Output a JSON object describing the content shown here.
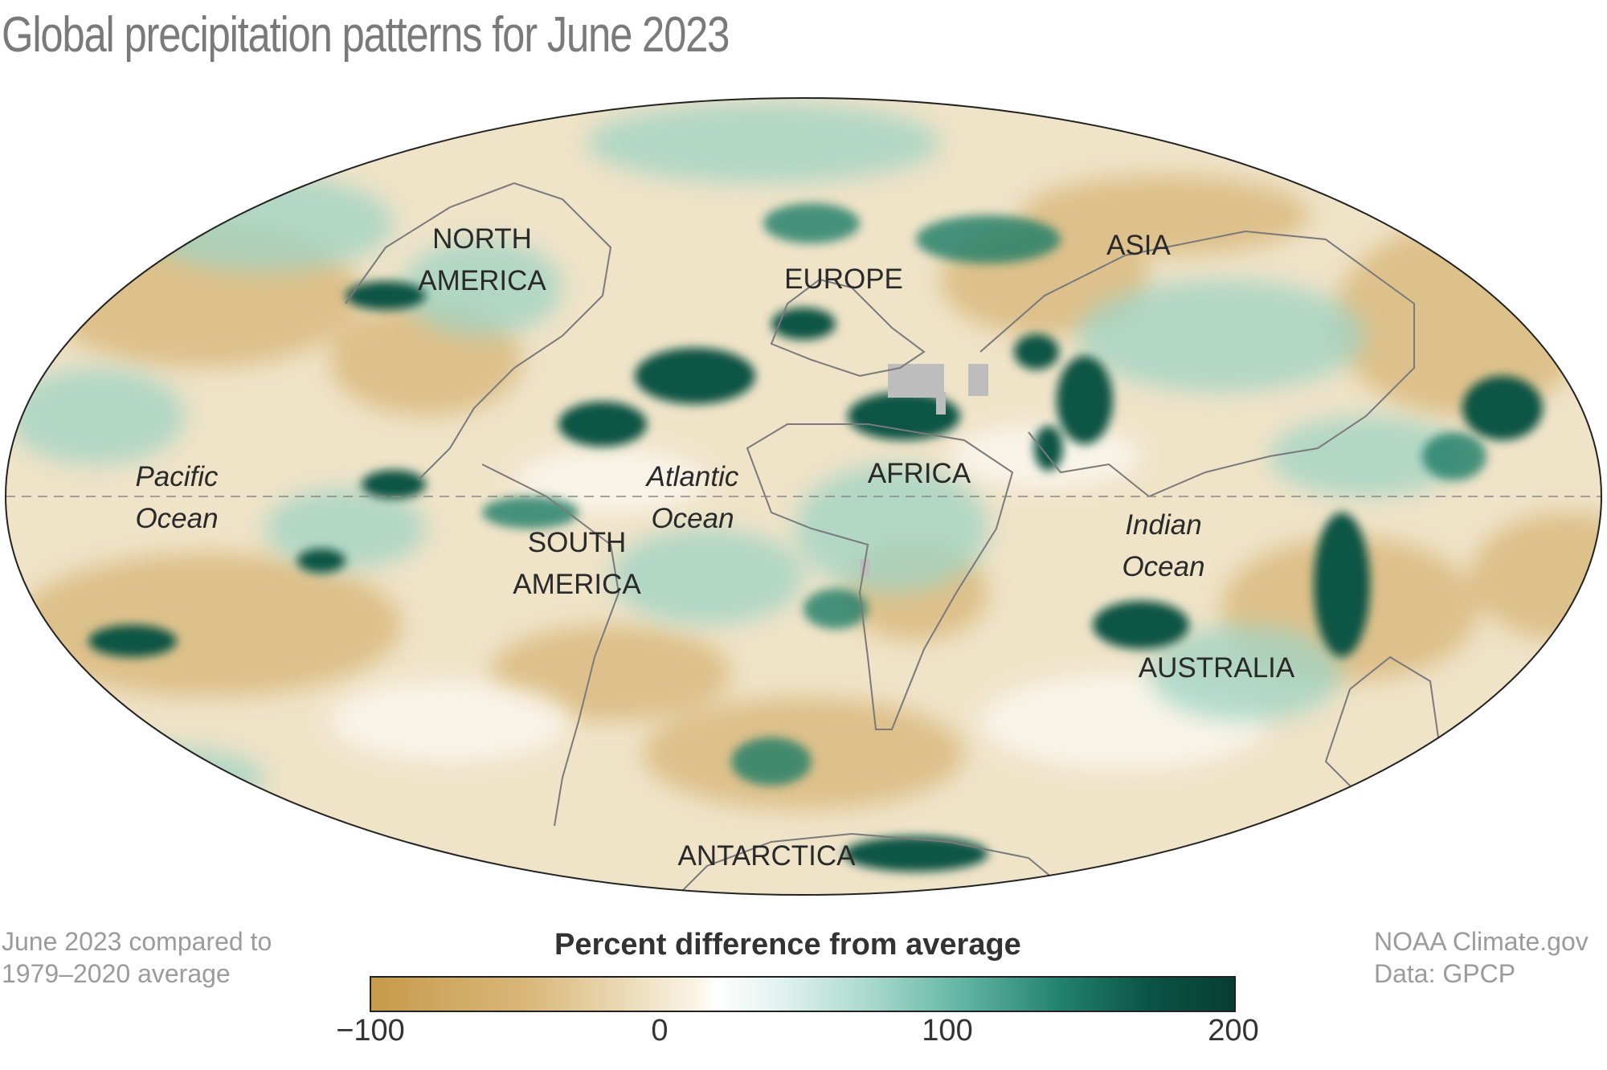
{
  "title": "Global precipitation patterns for June 2023",
  "regions": {
    "north_america": [
      "NORTH",
      "AMERICA"
    ],
    "europe": "EUROPE",
    "asia": "ASIA",
    "africa": "AFRICA",
    "south_america": [
      "SOUTH",
      "AMERICA"
    ],
    "australia": "AUSTRALIA",
    "antarctica": "ANTARCTICA"
  },
  "oceans": {
    "pacific": [
      "Pacific",
      "Ocean"
    ],
    "atlantic": [
      "Atlantic",
      "Ocean"
    ],
    "indian": [
      "Indian",
      "Ocean"
    ]
  },
  "notes": {
    "comparison": [
      "June 2023 compared to",
      "1979–2020 average"
    ],
    "credit": [
      "NOAA Climate.gov",
      "Data: GPCP"
    ]
  },
  "legend": {
    "title": "Percent difference from average",
    "ticks": [
      "−100",
      "0",
      "100",
      "200"
    ],
    "range": [
      -100,
      200
    ],
    "colors": {
      "dry": "#c79a4a",
      "neutral": "#ffffff",
      "wet": "#073d33",
      "no_data": "#bdbdbd"
    }
  },
  "map": {
    "projection": "Mollweide",
    "equator_line": "dashed"
  }
}
